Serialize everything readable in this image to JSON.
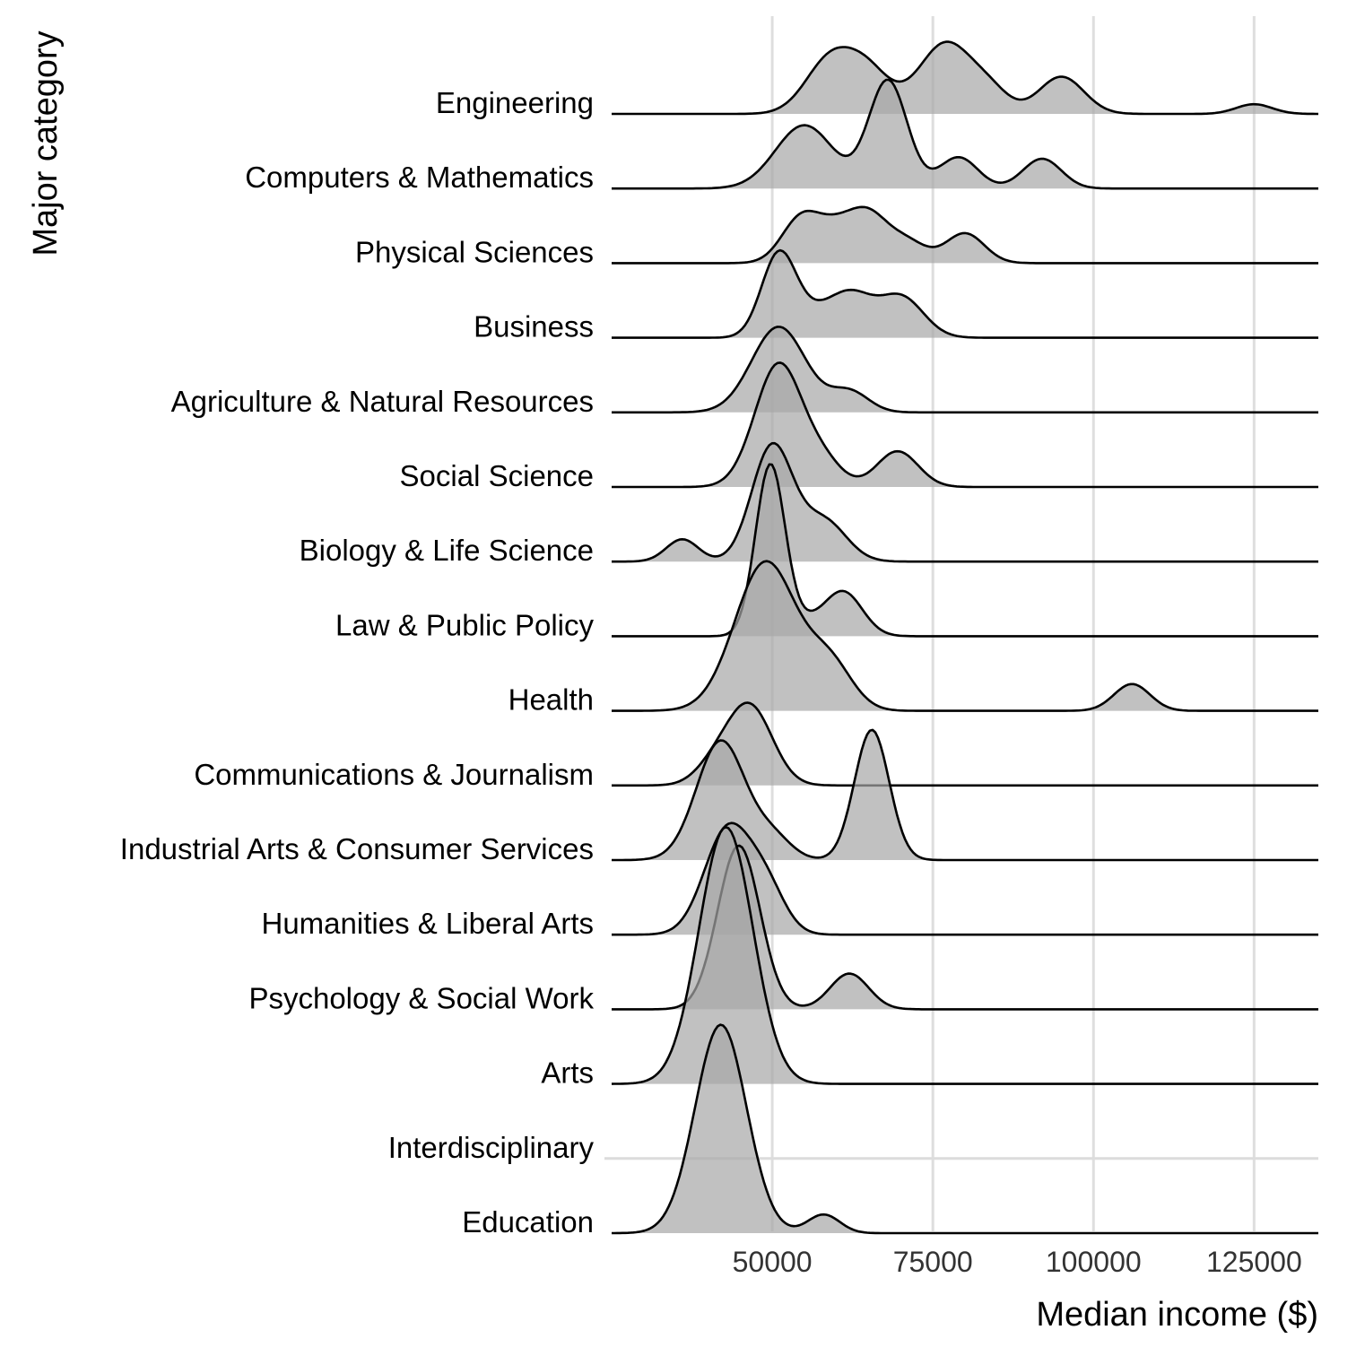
{
  "chart_data": {
    "type": "ridgeline",
    "xlabel": "Median income ($)",
    "ylabel": "Major category",
    "xlim": [
      25000,
      135000
    ],
    "xticks": [
      50000,
      75000,
      100000,
      125000
    ],
    "xtick_labels": [
      "50000",
      "75000",
      "100000",
      "125000"
    ],
    "grid": "vertical major gridlines",
    "colors": {
      "fill": "#a6a6a6",
      "line": "#000000",
      "grid": "#dedede"
    },
    "categories": [
      "Engineering",
      "Computers & Mathematics",
      "Physical Sciences",
      "Business",
      "Agriculture & Natural Resources",
      "Social Science",
      "Biology & Life Science",
      "Law & Public Policy",
      "Health",
      "Communications & Journalism",
      "Industrial Arts & Consumer Services",
      "Humanities & Liberal Arts",
      "Psychology & Social Work",
      "Arts",
      "Interdisciplinary",
      "Education"
    ],
    "series": [
      {
        "name": "Engineering",
        "density_peaks": [
          {
            "mean": 59000,
            "sd": 3800,
            "h": 0.72
          },
          {
            "mean": 65000,
            "sd": 3500,
            "h": 0.52
          },
          {
            "mean": 77000,
            "sd": 4200,
            "h": 0.95
          },
          {
            "mean": 84000,
            "sd": 3000,
            "h": 0.25
          },
          {
            "mean": 95000,
            "sd": 3500,
            "h": 0.5
          },
          {
            "mean": 125000,
            "sd": 2800,
            "h": 0.13
          }
        ]
      },
      {
        "name": "Computers & Mathematics",
        "density_peaks": [
          {
            "mean": 55000,
            "sd": 4500,
            "h": 0.85
          },
          {
            "mean": 68000,
            "sd": 3000,
            "h": 1.45
          },
          {
            "mean": 79000,
            "sd": 3000,
            "h": 0.42
          },
          {
            "mean": 92000,
            "sd": 3000,
            "h": 0.4
          }
        ]
      },
      {
        "name": "Physical Sciences",
        "density_peaks": [
          {
            "mean": 54500,
            "sd": 3000,
            "h": 0.6
          },
          {
            "mean": 60000,
            "sd": 3000,
            "h": 0.4
          },
          {
            "mean": 65000,
            "sd": 3000,
            "h": 0.6
          },
          {
            "mean": 71000,
            "sd": 3000,
            "h": 0.28
          },
          {
            "mean": 80000,
            "sd": 3000,
            "h": 0.4
          }
        ]
      },
      {
        "name": "Business",
        "density_peaks": [
          {
            "mean": 51000,
            "sd": 2700,
            "h": 1.1
          },
          {
            "mean": 57000,
            "sd": 3500,
            "h": 0.3
          },
          {
            "mean": 62500,
            "sd": 3200,
            "h": 0.5
          },
          {
            "mean": 70000,
            "sd": 3500,
            "h": 0.55
          }
        ]
      },
      {
        "name": "Agriculture & Natural Resources",
        "density_peaks": [
          {
            "mean": 51000,
            "sd": 4200,
            "h": 1.15
          },
          {
            "mean": 62000,
            "sd": 3000,
            "h": 0.28
          }
        ]
      },
      {
        "name": "Social Science",
        "density_peaks": [
          {
            "mean": 51000,
            "sd": 3700,
            "h": 1.65
          },
          {
            "mean": 58000,
            "sd": 3000,
            "h": 0.3
          },
          {
            "mean": 69500,
            "sd": 3200,
            "h": 0.48
          }
        ]
      },
      {
        "name": "Biology & Life Science",
        "density_peaks": [
          {
            "mean": 36000,
            "sd": 2500,
            "h": 0.3
          },
          {
            "mean": 50000,
            "sd": 3200,
            "h": 1.55
          },
          {
            "mean": 58000,
            "sd": 3500,
            "h": 0.55
          }
        ]
      },
      {
        "name": "Law & Public Policy",
        "density_peaks": [
          {
            "mean": 49700,
            "sd": 2300,
            "h": 2.3
          },
          {
            "mean": 55000,
            "sd": 2500,
            "h": 0.15
          },
          {
            "mean": 61000,
            "sd": 3000,
            "h": 0.6
          }
        ]
      },
      {
        "name": "Health",
        "density_peaks": [
          {
            "mean": 49000,
            "sd": 4800,
            "h": 2.0
          },
          {
            "mean": 59000,
            "sd": 3500,
            "h": 0.6
          },
          {
            "mean": 106000,
            "sd": 2800,
            "h": 0.36
          }
        ]
      },
      {
        "name": "Communications & Journalism",
        "density_peaks": [
          {
            "mean": 46500,
            "sd": 3500,
            "h": 1.06
          },
          {
            "mean": 41000,
            "sd": 3000,
            "h": 0.25
          }
        ]
      },
      {
        "name": "Industrial Arts & Consumer Services",
        "density_peaks": [
          {
            "mean": 42000,
            "sd": 3800,
            "h": 1.6
          },
          {
            "mean": 50000,
            "sd": 3000,
            "h": 0.3
          },
          {
            "mean": 65500,
            "sd": 2700,
            "h": 1.75
          }
        ]
      },
      {
        "name": "Humanities & Liberal Arts",
        "density_peaks": [
          {
            "mean": 43000,
            "sd": 3600,
            "h": 1.4
          },
          {
            "mean": 49000,
            "sd": 3000,
            "h": 0.6
          }
        ]
      },
      {
        "name": "Psychology & Social Work",
        "density_peaks": [
          {
            "mean": 44800,
            "sd": 3300,
            "h": 2.2
          },
          {
            "mean": 62000,
            "sd": 3000,
            "h": 0.48
          }
        ]
      },
      {
        "name": "Arts",
        "density_peaks": [
          {
            "mean": 42800,
            "sd": 4200,
            "h": 3.45
          }
        ]
      },
      {
        "name": "Interdisciplinary",
        "density_peaks": []
      },
      {
        "name": "Education",
        "density_peaks": [
          {
            "mean": 42000,
            "sd": 4000,
            "h": 2.8
          },
          {
            "mean": 58000,
            "sd": 2500,
            "h": 0.25
          }
        ]
      }
    ]
  }
}
